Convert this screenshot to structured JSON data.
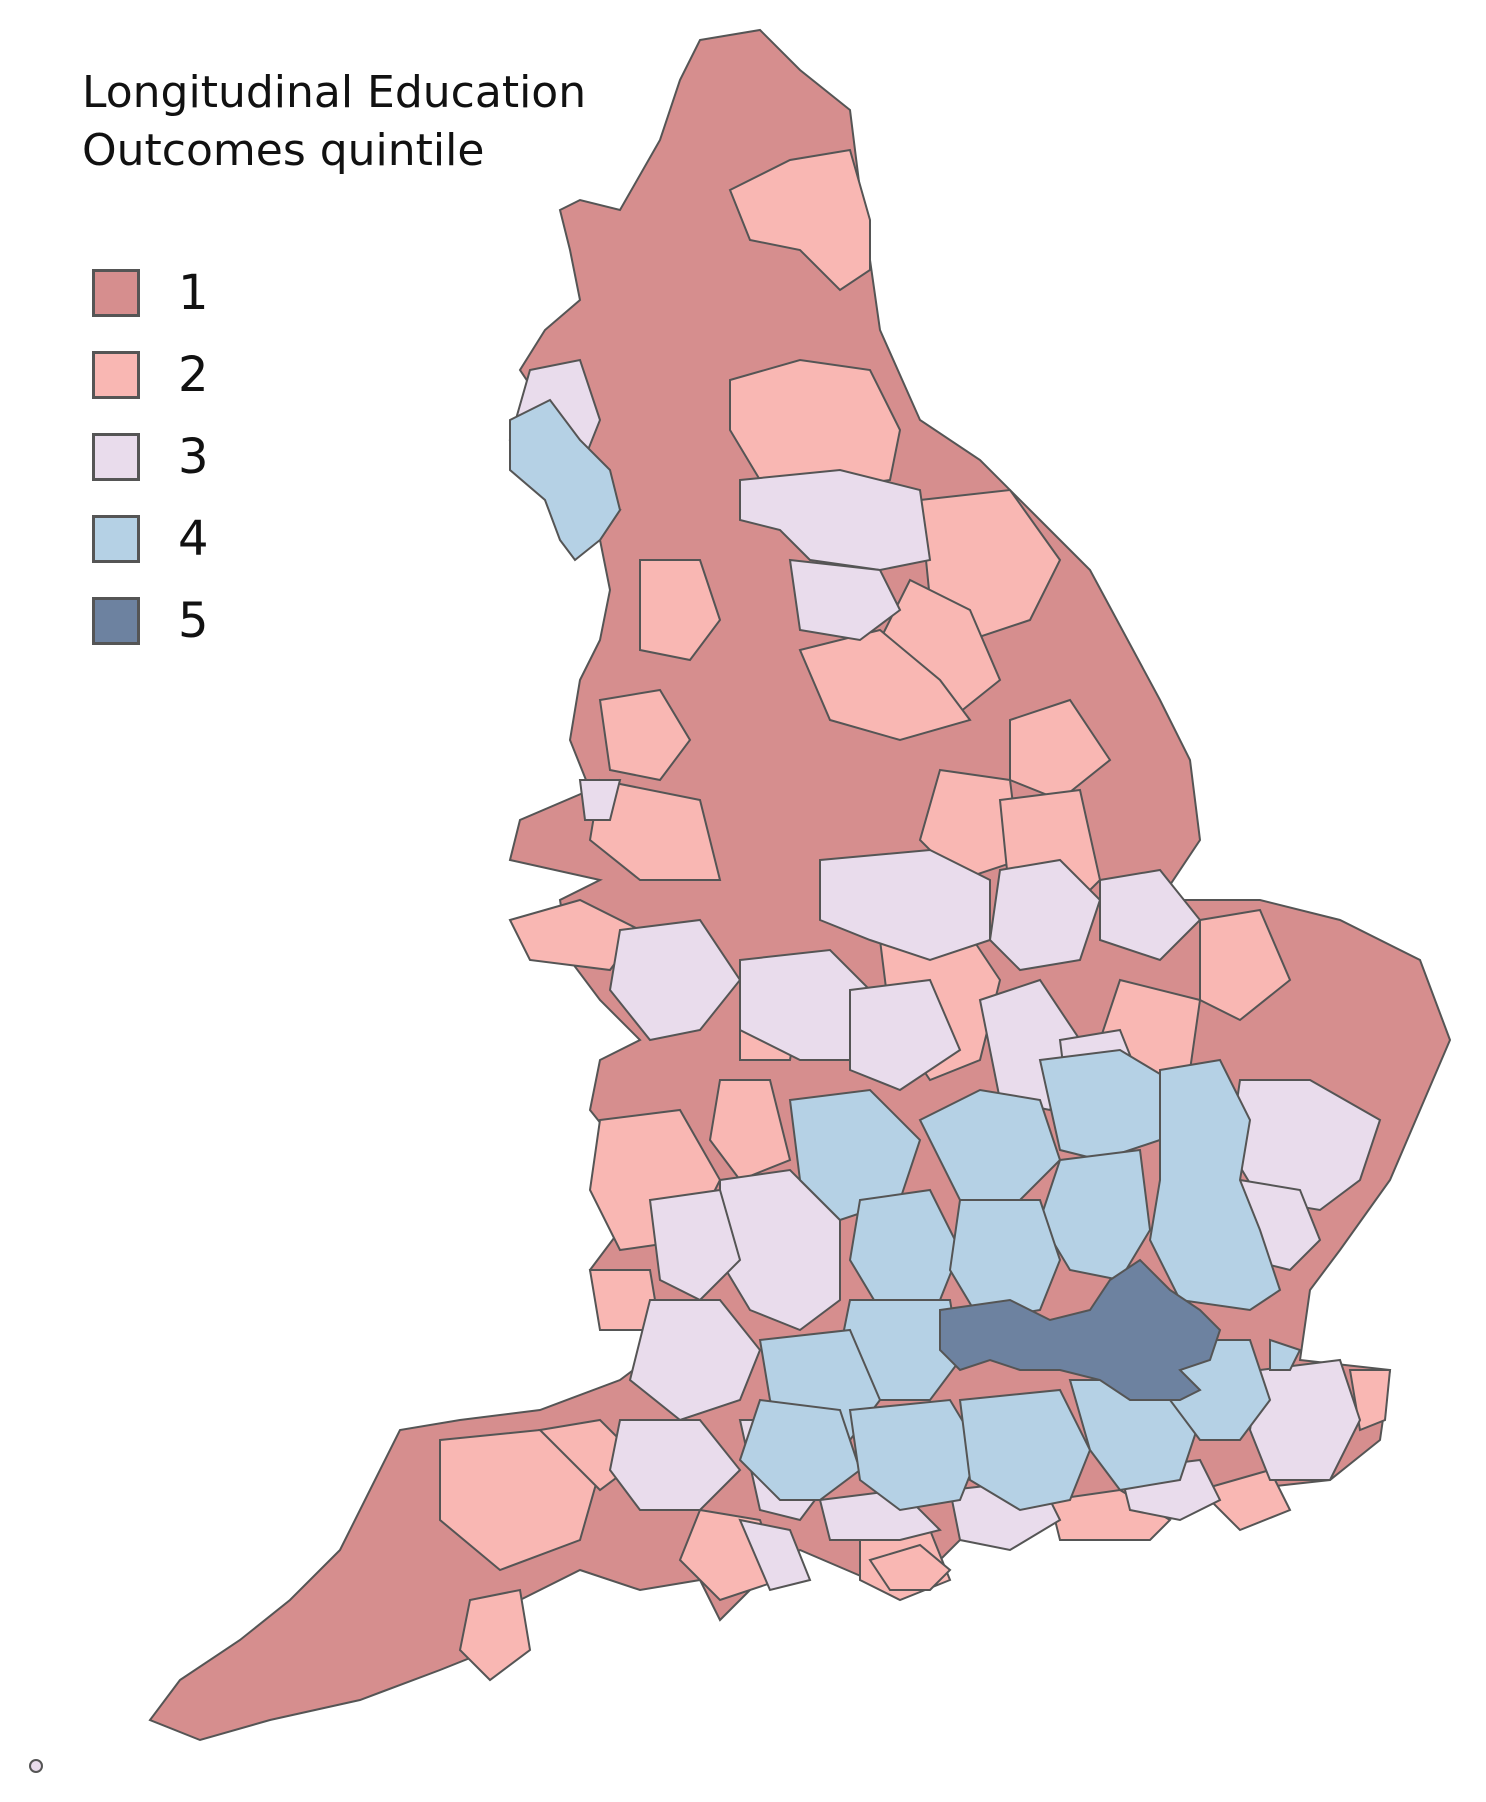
{
  "legend": {
    "title_line1": "Longitudinal Education",
    "title_line2": "Outcomes quintile",
    "items": [
      {
        "label": "1",
        "color": "#d68e8e"
      },
      {
        "label": "2",
        "color": "#f9b7b3"
      },
      {
        "label": "3",
        "color": "#e9dcec"
      },
      {
        "label": "4",
        "color": "#b5d1e5"
      },
      {
        "label": "5",
        "color": "#6d82a0"
      }
    ]
  },
  "map": {
    "region": "England",
    "border_color": "#555555"
  }
}
